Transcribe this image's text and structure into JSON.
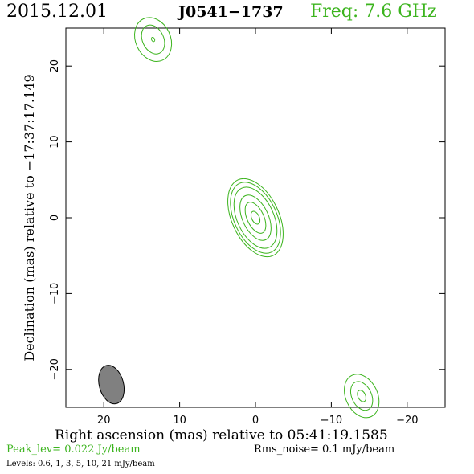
{
  "header": {
    "date": "2015.12.01",
    "source": "J0541−1737",
    "frequency": "Freq: 7.6 GHz"
  },
  "chart_data": {
    "type": "contour",
    "xlabel": "Right ascension (mas) relative to 05:41:19.1585",
    "ylabel": "Declination (mas) relative to −17:37:17.149",
    "xlim": [
      25,
      -25
    ],
    "ylim": [
      -25,
      25
    ],
    "x_ticks": [
      20,
      10,
      0,
      -10,
      -20
    ],
    "x_tick_labels": [
      "20",
      "10",
      "0",
      "−10",
      "−20"
    ],
    "y_ticks": [
      20,
      10,
      0,
      -10,
      -20
    ],
    "y_tick_labels": [
      "20",
      "10",
      "0",
      "−10",
      "−20"
    ],
    "contour_color": "#3cb41e",
    "levels_mJy": [
      0.6,
      1,
      3,
      5,
      10,
      21
    ],
    "components": [
      {
        "x": 0,
        "y": 0,
        "contours": [
          {
            "rx": 3.1,
            "ry": 5.5
          },
          {
            "rx": 2.8,
            "ry": 5.0
          },
          {
            "rx": 2.4,
            "ry": 4.3
          },
          {
            "rx": 1.7,
            "ry": 3.2
          },
          {
            "rx": 1.1,
            "ry": 2.2
          },
          {
            "rx": 0.5,
            "ry": 0.9
          }
        ]
      },
      {
        "x": 13.5,
        "y": 23.5,
        "contours": [
          {
            "rx": 2.3,
            "ry": 3.0
          },
          {
            "rx": 1.4,
            "ry": 2.0
          },
          {
            "rx": 0.2,
            "ry": 0.3
          }
        ]
      },
      {
        "x": -14,
        "y": -23.5,
        "contours": [
          {
            "rx": 2.1,
            "ry": 3.0
          },
          {
            "rx": 1.3,
            "ry": 2.0
          },
          {
            "rx": 0.5,
            "ry": 0.8
          }
        ]
      }
    ],
    "beam": {
      "x": 19,
      "y": -22,
      "major_mas": 5.2,
      "minor_mas": 3.2,
      "color": "#808080"
    },
    "peak_level": "Peak_lev=  0.022 Jy/beam",
    "rms_noise": "Rms_noise=  0.1 mJy/beam",
    "levels_text": "Levels: 0.6,   1,   3,   5,  10,  21 mJy/beam"
  }
}
